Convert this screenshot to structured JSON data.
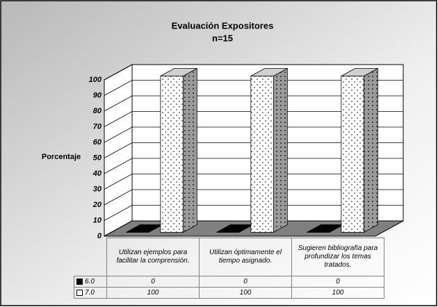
{
  "chart_data": {
    "type": "bar3d",
    "title": "Evaluación Expositores",
    "subtitle": "n=15",
    "ylabel": "Porcentaje",
    "categories": [
      "Utilizan ejemplos para facilitar la comprensión.",
      "Utilizan óptimamente el tiempo asignado.",
      "Sugieren bibliografía para profundizar los temas tratados."
    ],
    "series": [
      {
        "name": "6.0",
        "color": "#000000",
        "values": [
          0,
          0,
          0
        ]
      },
      {
        "name": "7.0",
        "color": "#ffffff",
        "values": [
          100,
          100,
          100
        ]
      }
    ],
    "ylim": [
      0,
      100
    ],
    "yticks": [
      0,
      10,
      20,
      30,
      40,
      50,
      60,
      70,
      80,
      90,
      100
    ],
    "grid": true,
    "data_table": true
  }
}
